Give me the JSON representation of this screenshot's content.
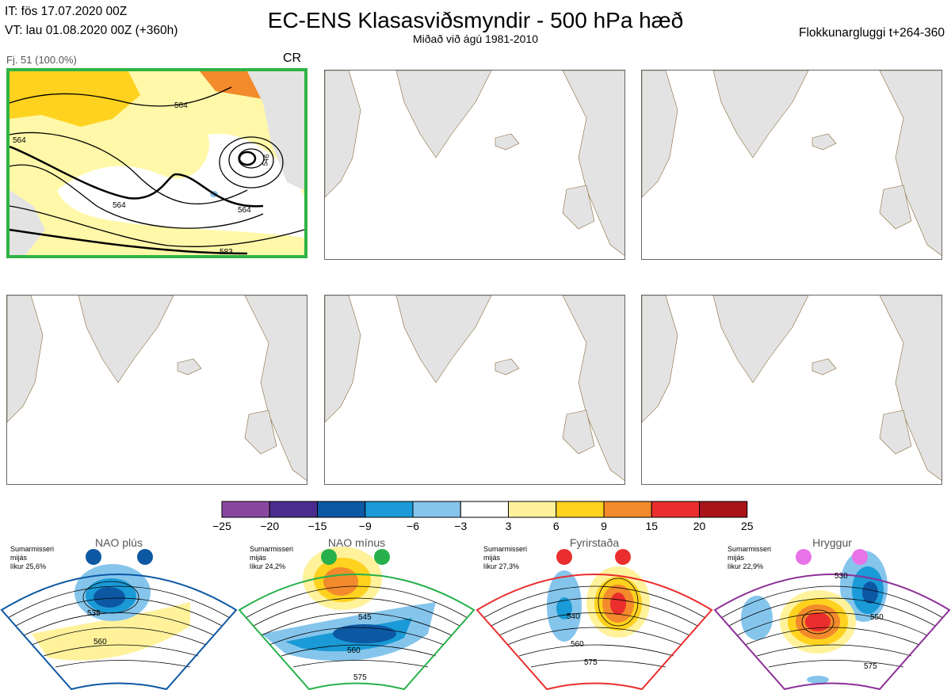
{
  "header": {
    "it_line": "IT: fös 17.07.2020 00Z",
    "vt_line": "VT: lau 01.08.2020 00Z  (+360h)",
    "title": "EC-ENS Klasasviðsmyndir - 500 hPa hæð",
    "subtitle": "Miðað við ágú 1981-2010",
    "window": "Flokkunargluggi t+264-360"
  },
  "panel_main": {
    "label": "Fj. 51 (100.0%)",
    "regime": "CR",
    "contour_labels": [
      "564",
      "564",
      "564",
      "564",
      "583",
      "546"
    ]
  },
  "colorbar": {
    "ticks": [
      "−25",
      "−20",
      "−15",
      "−9",
      "−6",
      "−3",
      "3",
      "6",
      "9",
      "15",
      "20",
      "25"
    ],
    "colors": [
      "#8a479f",
      "#4a2c8e",
      "#0d58a3",
      "#1a9ad6",
      "#85c5ec",
      "#ffffff",
      "#fff29b",
      "#ffd21f",
      "#f38a2b",
      "#ea2e2e",
      "#a8141a"
    ]
  },
  "regimes": [
    {
      "name": "NAO plús",
      "season": "Sumarmisseri",
      "period": "mijás",
      "prob": "líkur 25,6%",
      "labels": [
        "535",
        "560"
      ],
      "dot_color": "#0d58a3",
      "border_color": "#0d58a3"
    },
    {
      "name": "NAO mínus",
      "season": "Sumarmisseri",
      "period": "mijás",
      "prob": "líkur 24,2%",
      "labels": [
        "545",
        "560",
        "575"
      ],
      "dot_color": "#27b04b",
      "border_color": "#27b04b"
    },
    {
      "name": "Fyrirstaða",
      "season": "Sumarmisseri",
      "period": "mijás",
      "prob": "líkur 27,3%",
      "labels": [
        "540",
        "560",
        "575"
      ],
      "dot_color": "#ea2e2e",
      "border_color": "#ea2e2e"
    },
    {
      "name": "Hryggur",
      "season": "Sumarmisseri",
      "period": "mijás",
      "prob": "líkur 22,9%",
      "labels": [
        "530",
        "550",
        "575"
      ],
      "dot_color": "#e873e8",
      "border_color": "#8c2f97"
    }
  ],
  "chart_data": {
    "type": "heatmap",
    "title": "EC-ENS Klasasviðsmyndir - 500 hPa hæð",
    "subtitle": "Miðað við ágú 1981-2010",
    "colorbar_levels": [
      -25,
      -20,
      -15,
      -9,
      -6,
      -3,
      3,
      6,
      9,
      15,
      20,
      25
    ],
    "clusters": [
      {
        "label": "Fj. 51 (100.0%)",
        "members": 51,
        "percent": 100.0,
        "regime": "CR",
        "contour_labels": [
          564,
          564,
          564,
          564,
          583,
          546
        ]
      }
    ],
    "regimes": [
      {
        "name": "NAO plús",
        "probability_percent": 25.6
      },
      {
        "name": "NAO mínus",
        "probability_percent": 24.2
      },
      {
        "name": "Fyrirstaða",
        "probability_percent": 27.3
      },
      {
        "name": "Hryggur",
        "probability_percent": 22.9
      }
    ]
  }
}
